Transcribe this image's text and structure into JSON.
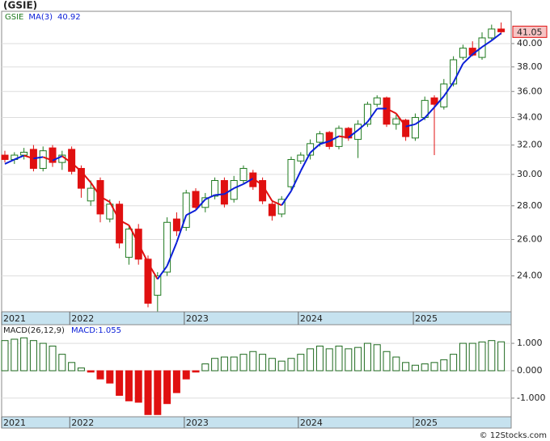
{
  "chart_data": {
    "type": "candlestick",
    "title": "(GSIE)",
    "symbol": "GSIE",
    "open": [
      31.3,
      31.0,
      31.3,
      31.7,
      30.4,
      31.8,
      30.8,
      31.7,
      30.4,
      28.3,
      29.6,
      27.2,
      28.1,
      25.0,
      26.6,
      24.9,
      23.0,
      24.2,
      27.2,
      26.7,
      28.9,
      27.9,
      28.6,
      29.6,
      28.4,
      29.6,
      30.1,
      29.6,
      28.1,
      27.5,
      29.2,
      30.9,
      31.3,
      32.2,
      32.9,
      31.9,
      33.2,
      32.4,
      33.5,
      35.0,
      35.5,
      33.5,
      33.8,
      32.5,
      34.0,
      35.5,
      34.8,
      36.6,
      38.8,
      39.6,
      38.8,
      40.5,
      41.3
    ],
    "high": [
      31.6,
      31.5,
      31.8,
      32.0,
      31.9,
      32.0,
      31.6,
      31.9,
      30.6,
      29.6,
      29.8,
      28.4,
      28.3,
      26.8,
      26.9,
      25.1,
      24.2,
      27.3,
      27.6,
      29.0,
      29.1,
      28.8,
      29.8,
      29.8,
      29.9,
      30.6,
      30.3,
      29.8,
      28.3,
      28.6,
      31.2,
      31.5,
      32.4,
      33.0,
      33.0,
      33.4,
      33.3,
      33.8,
      35.2,
      35.7,
      35.6,
      34.2,
      33.9,
      34.3,
      35.6,
      35.7,
      37.0,
      38.9,
      39.9,
      40.2,
      41.0,
      41.7,
      41.9
    ],
    "low": [
      30.8,
      30.7,
      31.0,
      30.2,
      30.2,
      30.5,
      30.3,
      30.0,
      28.5,
      28.0,
      27.0,
      27.0,
      25.5,
      24.6,
      24.6,
      22.4,
      22.2,
      24.0,
      26.2,
      26.5,
      27.8,
      27.6,
      28.4,
      27.9,
      28.2,
      29.4,
      29.0,
      28.1,
      27.1,
      27.3,
      29.0,
      30.7,
      31.0,
      31.9,
      31.7,
      31.7,
      32.3,
      31.1,
      33.3,
      34.8,
      33.3,
      33.1,
      32.3,
      32.3,
      33.8,
      31.3,
      34.6,
      36.4,
      38.6,
      38.9,
      38.6,
      40.3,
      40.8
    ],
    "close": [
      31.0,
      31.3,
      31.5,
      30.4,
      31.6,
      30.8,
      31.3,
      30.2,
      29.1,
      29.1,
      27.5,
      28.1,
      25.8,
      26.6,
      24.9,
      22.6,
      24.0,
      27.0,
      26.5,
      28.8,
      27.9,
      28.5,
      29.6,
      28.1,
      29.6,
      30.4,
      29.2,
      28.3,
      27.4,
      28.4,
      31.0,
      31.3,
      32.1,
      32.8,
      31.9,
      33.2,
      32.5,
      33.5,
      35.0,
      35.5,
      33.5,
      33.9,
      32.6,
      34.0,
      35.3,
      35.0,
      36.6,
      38.6,
      39.6,
      39.0,
      40.5,
      41.3,
      41.05
    ],
    "up_color": "#1f7a1f",
    "down_color": "#e01010",
    "log_scale": true,
    "grid": true,
    "ylim": [
      22.18,
      42.94
    ],
    "yticks": [
      {
        "value": 24,
        "label": "24.00"
      },
      {
        "value": 26,
        "label": "26.00"
      },
      {
        "value": 28,
        "label": "28.00"
      },
      {
        "value": 30,
        "label": "30.00"
      },
      {
        "value": 32,
        "label": "32.00"
      },
      {
        "value": 34,
        "label": "34.00"
      },
      {
        "value": 36,
        "label": "36.00"
      },
      {
        "value": 38,
        "label": "38.00"
      },
      {
        "value": 40,
        "label": "40.00"
      }
    ],
    "xlim": [
      -0.34,
      53.05
    ],
    "xticks": [
      {
        "value": -0.34,
        "label": "2021"
      },
      {
        "value": 6.8,
        "label": "2022"
      },
      {
        "value": 18.8,
        "label": "2023"
      },
      {
        "value": 30.75,
        "label": "2024"
      },
      {
        "value": 42.8,
        "label": "2025"
      }
    ],
    "ma": {
      "name": "MA(3)",
      "up_color": "#0a1ed8",
      "down_color": "#e01010",
      "values": [
        30.7,
        31.0,
        31.27,
        31.07,
        31.17,
        30.93,
        31.23,
        30.77,
        30.2,
        29.47,
        28.57,
        28.23,
        27.13,
        26.83,
        25.77,
        24.7,
        23.83,
        24.53,
        25.83,
        27.43,
        27.73,
        28.4,
        28.67,
        28.73,
        29.1,
        29.37,
        29.73,
        29.3,
        28.3,
        28.03,
        28.93,
        30.23,
        31.47,
        32.07,
        32.27,
        32.63,
        32.53,
        33.07,
        33.67,
        34.67,
        34.67,
        34.3,
        33.33,
        33.5,
        33.97,
        34.77,
        35.63,
        36.73,
        38.27,
        39.07,
        39.7,
        40.27,
        40.92
      ]
    },
    "last_price_color": "#f6c4c4",
    "macd": {
      "name": "MACD(26,12,9)",
      "label": "MACD:",
      "up_color": "#1f6a1f",
      "down_color": "#e01010",
      "values": [
        1.1,
        1.15,
        1.2,
        1.1,
        1.0,
        0.9,
        0.6,
        0.3,
        0.1,
        -0.05,
        -0.3,
        -0.45,
        -0.9,
        -1.1,
        -1.15,
        -1.6,
        -1.6,
        -1.2,
        -0.8,
        -0.3,
        -0.05,
        0.25,
        0.45,
        0.5,
        0.5,
        0.6,
        0.7,
        0.6,
        0.45,
        0.35,
        0.45,
        0.6,
        0.8,
        0.9,
        0.8,
        0.9,
        0.8,
        0.85,
        1.0,
        0.95,
        0.7,
        0.5,
        0.3,
        0.2,
        0.25,
        0.3,
        0.4,
        0.6,
        1.0,
        1.0,
        1.05,
        1.1,
        1.055
      ],
      "ylim": [
        -1.68,
        1.68
      ],
      "yticks": [
        {
          "value": -1,
          "label": "-1.000"
        },
        {
          "value": 0,
          "label": "0.000"
        },
        {
          "value": 1,
          "label": "1.000"
        }
      ]
    },
    "watermark": "© 12Stocks.com"
  }
}
